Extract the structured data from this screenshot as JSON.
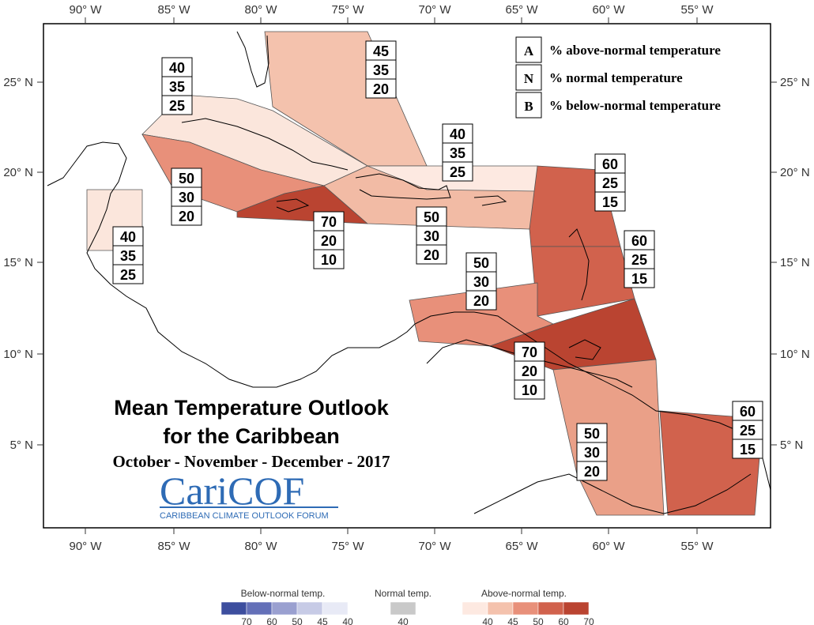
{
  "map": {
    "lon_ticks": [
      "90° W",
      "85° W",
      "80° W",
      "75° W",
      "70° W",
      "65° W",
      "60° W",
      "55° W"
    ],
    "lat_ticks": [
      "25° N",
      "20° N",
      "15° N",
      "10° N",
      "5° N"
    ],
    "title_line1": "Mean Temperature Outlook",
    "title_line2": "for the Caribbean",
    "period": "October - November - December - 2017",
    "logo": {
      "main": "CariCOF",
      "sub": "CARIBBEAN CLIMATE OUTLOOK FORUM"
    }
  },
  "key": [
    {
      "letter": "A",
      "label": "% above-normal temperature"
    },
    {
      "letter": "N",
      "label": "% normal temperature"
    },
    {
      "letter": "B",
      "label": "% below-normal temperature"
    }
  ],
  "regions": [
    {
      "name": "Bahamas",
      "above": "45",
      "normal": "35",
      "below": "20",
      "color": "#f4c2ad"
    },
    {
      "name": "Cuba",
      "above": "40",
      "normal": "35",
      "below": "25",
      "color": "#fbe6dc"
    },
    {
      "name": "Cayman Islands",
      "above": "50",
      "normal": "30",
      "below": "20",
      "color": "#e8907a"
    },
    {
      "name": "Jamaica",
      "above": "70",
      "normal": "20",
      "below": "10",
      "color": "#ba4431"
    },
    {
      "name": "Hispaniola and Puerto Rico",
      "above": "50",
      "normal": "30",
      "below": "20",
      "color": "#f2bba5"
    },
    {
      "name": "Turks and Caicos",
      "above": "40",
      "normal": "35",
      "below": "25",
      "color": "#fde9e1"
    },
    {
      "name": "Belize",
      "above": "40",
      "normal": "35",
      "below": "25",
      "color": "#fbe6dc"
    },
    {
      "name": "Leeward Islands",
      "above": "60",
      "normal": "25",
      "below": "15",
      "color": "#d1624d"
    },
    {
      "name": "Windward Islands",
      "above": "60",
      "normal": "25",
      "below": "15",
      "color": "#d1624d"
    },
    {
      "name": "ABC Islands",
      "above": "50",
      "normal": "30",
      "below": "20",
      "color": "#e8907a"
    },
    {
      "name": "Trinidad and Tobago",
      "above": "70",
      "normal": "20",
      "below": "10",
      "color": "#ba4431"
    },
    {
      "name": "Guyana",
      "above": "50",
      "normal": "30",
      "below": "20",
      "color": "#eaa088"
    },
    {
      "name": "Suriname and French Guiana",
      "above": "60",
      "normal": "25",
      "below": "15",
      "color": "#d1624d"
    }
  ],
  "colorbar": {
    "below": {
      "title": "Below-normal temp.",
      "ticks": [
        "70",
        "60",
        "50",
        "45",
        "40"
      ],
      "colors": [
        "#3d4e9e",
        "#6470b8",
        "#9aa0d0",
        "#c7cbe6",
        "#e8eaf6"
      ]
    },
    "normal": {
      "title": "Normal temp.",
      "ticks": [
        "40"
      ],
      "colors": [
        "#c9c9c9"
      ]
    },
    "above": {
      "title": "Above-normal temp.",
      "ticks": [
        "40",
        "45",
        "50",
        "60",
        "70"
      ],
      "colors": [
        "#fde9e1",
        "#f4c2ad",
        "#e8907a",
        "#d1624d",
        "#ba4431"
      ]
    }
  }
}
